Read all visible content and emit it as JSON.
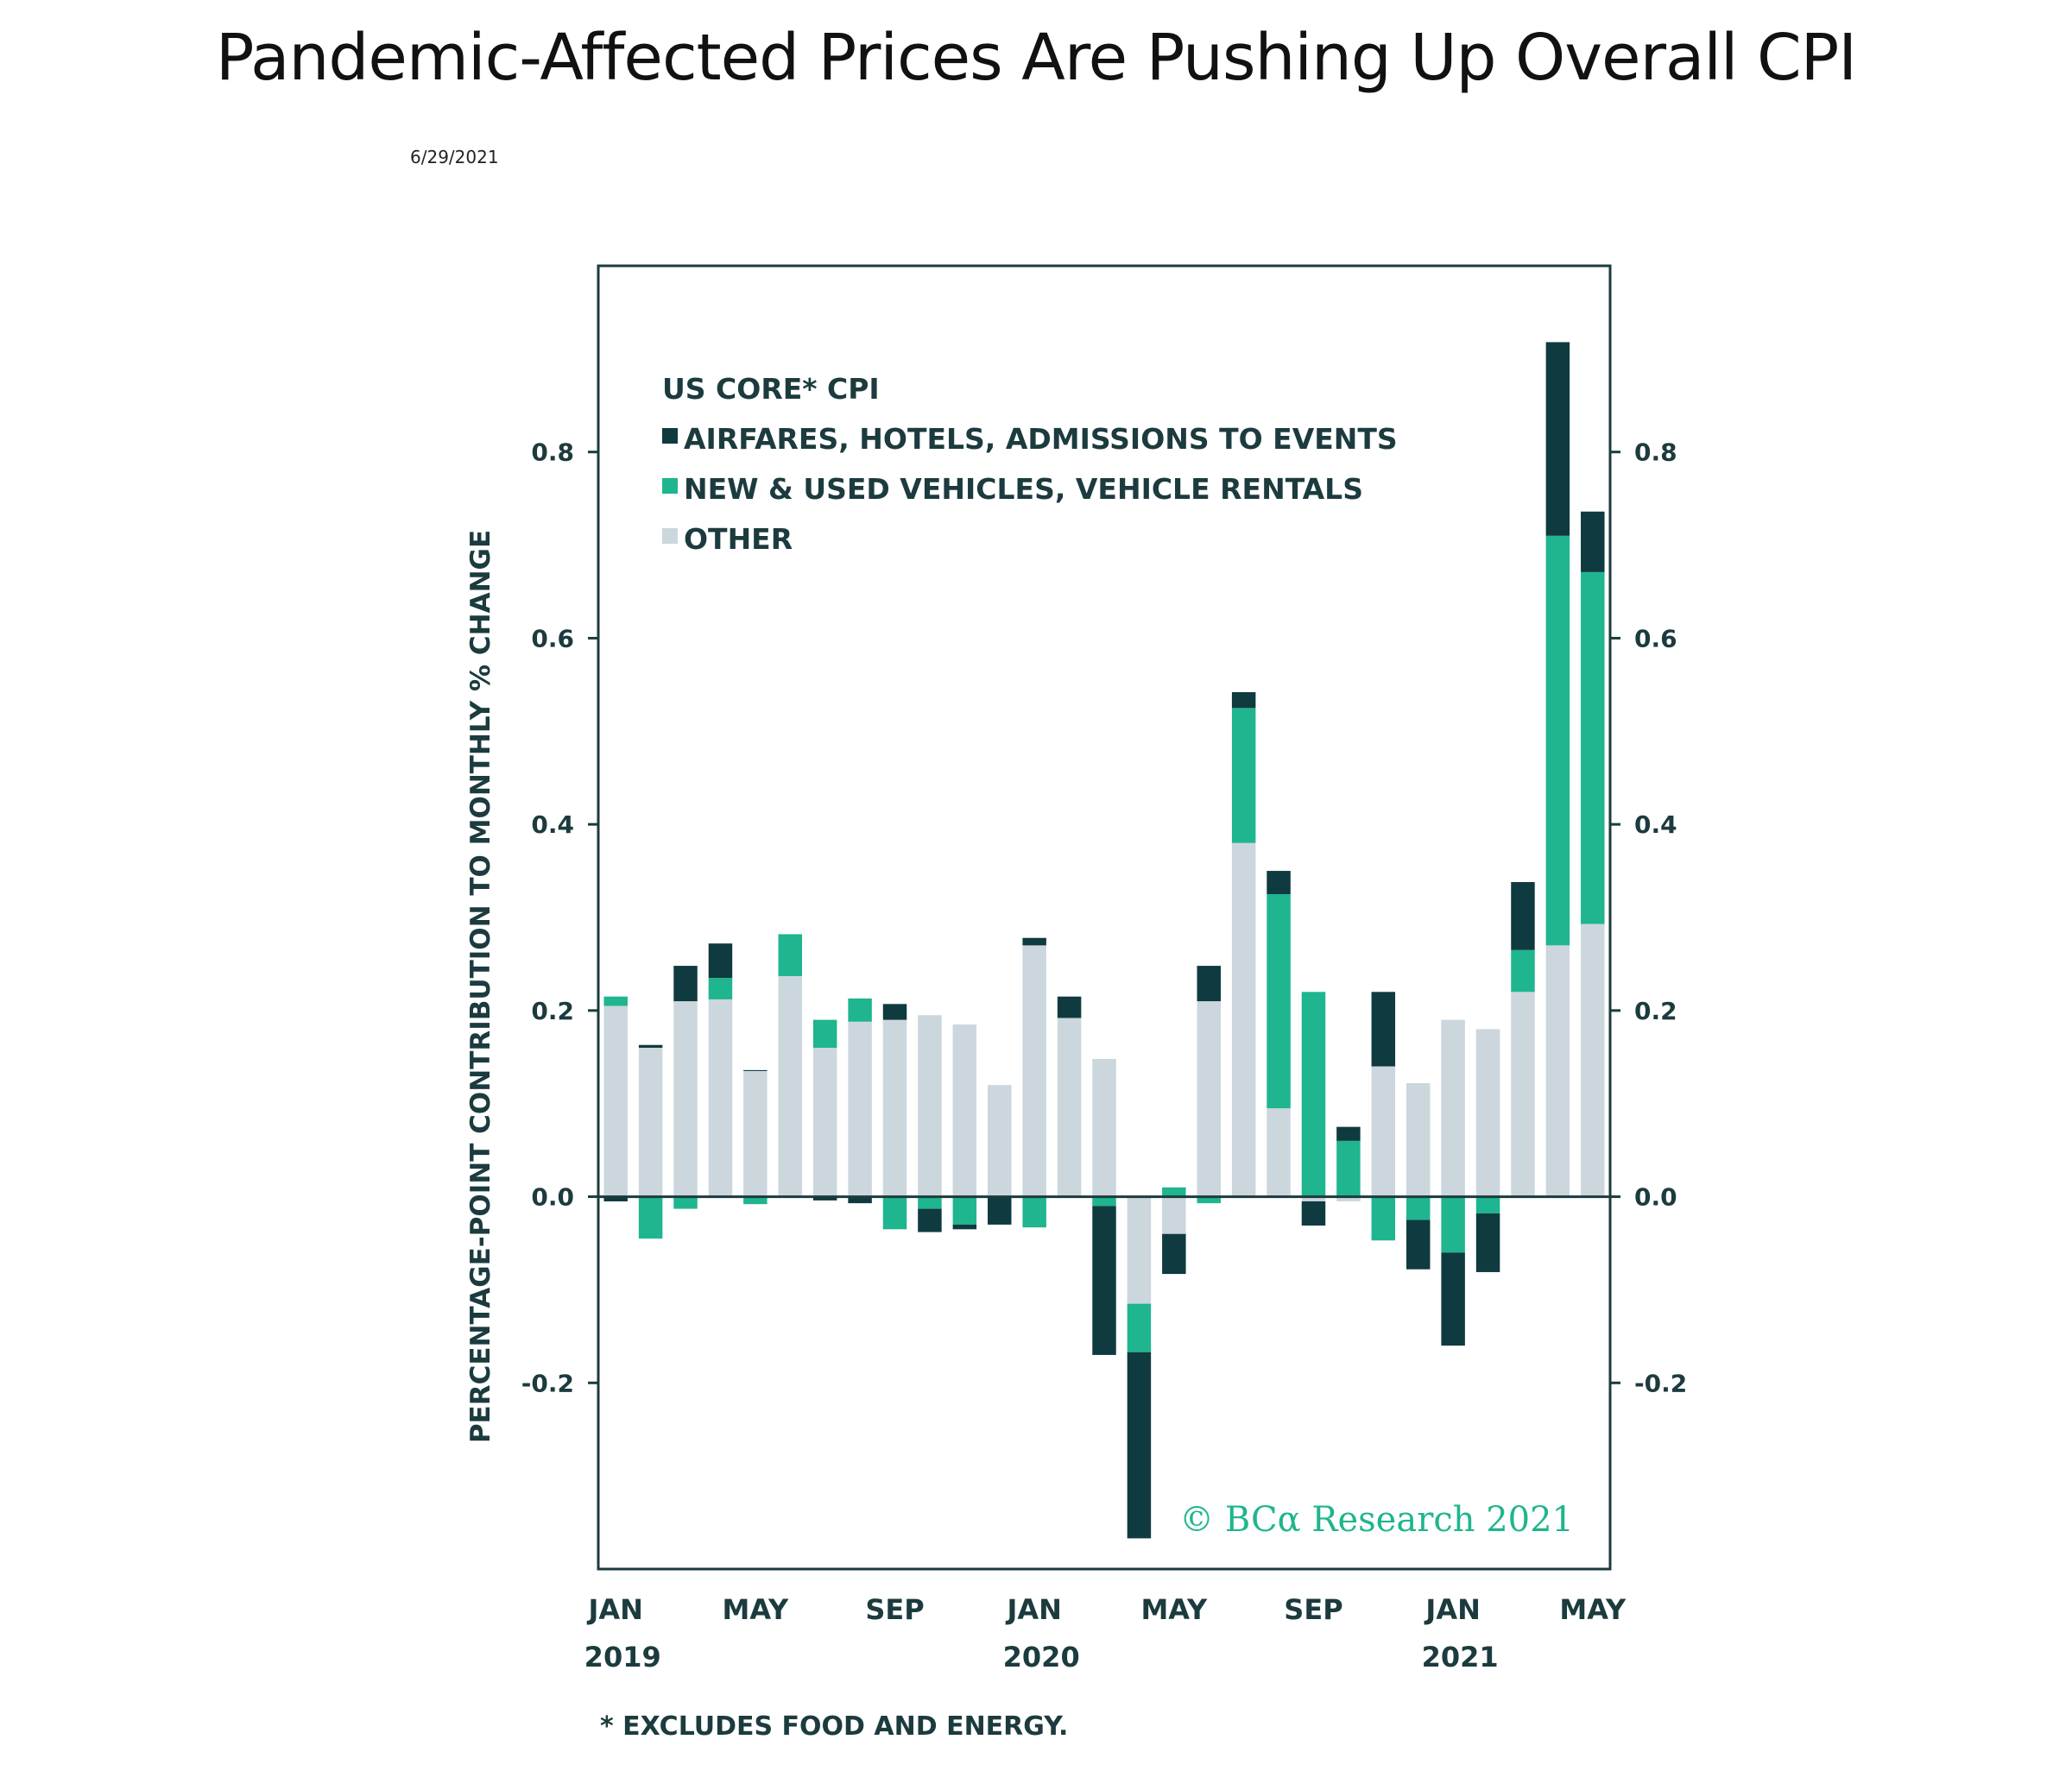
{
  "page": {
    "title": "Pandemic-Affected Prices Are Pushing Up Overall CPI",
    "date": "6/29/2021"
  },
  "colors": {
    "airfares": "#0f3a3f",
    "vehicles": "#1fb58e",
    "other": "#ccd6dd",
    "axis": "#1c3b3e"
  },
  "chart_data": {
    "type": "bar",
    "stacked": true,
    "title": "US CORE* CPI",
    "ylabel": "PERCENTAGE-POINT CONTRIBUTION TO MONTHLY % CHANGE",
    "ylim": [
      -0.4,
      1.0
    ],
    "yticks": [
      "0.8",
      "0.6",
      "0.4",
      "0.2",
      "0.0",
      "-0.2"
    ],
    "ytick_values": [
      0.8,
      0.6,
      0.4,
      0.2,
      0.0,
      -0.2
    ],
    "xtick_labels": [
      {
        "month": "JAN",
        "year": "2019",
        "index": 0
      },
      {
        "month": "MAY",
        "year": "",
        "index": 4
      },
      {
        "month": "SEP",
        "year": "",
        "index": 8
      },
      {
        "month": "JAN",
        "year": "2020",
        "index": 12
      },
      {
        "month": "MAY",
        "year": "",
        "index": 16
      },
      {
        "month": "SEP",
        "year": "",
        "index": 20
      },
      {
        "month": "JAN",
        "year": "2021",
        "index": 24
      },
      {
        "month": "MAY",
        "year": "",
        "index": 28
      }
    ],
    "categories": [
      "2019-01",
      "2019-02",
      "2019-03",
      "2019-04",
      "2019-05",
      "2019-06",
      "2019-07",
      "2019-08",
      "2019-09",
      "2019-10",
      "2019-11",
      "2019-12",
      "2020-01",
      "2020-02",
      "2020-03",
      "2020-04",
      "2020-05",
      "2020-06",
      "2020-07",
      "2020-08",
      "2020-09",
      "2020-10",
      "2020-11",
      "2020-12",
      "2021-01",
      "2021-02",
      "2021-03",
      "2021-04",
      "2021-05"
    ],
    "series": [
      {
        "name": "OTHER",
        "key": "other",
        "values": [
          0.205,
          0.16,
          0.21,
          0.212,
          0.135,
          0.237,
          0.16,
          0.188,
          0.19,
          0.195,
          0.185,
          0.12,
          0.27,
          0.192,
          0.148,
          -0.115,
          -0.04,
          0.21,
          0.38,
          0.095,
          -0.005,
          -0.005,
          0.14,
          0.122,
          0.19,
          0.18,
          0.22,
          0.27,
          0.293
        ]
      },
      {
        "name": "NEW & USED VEHICLES, VEHICLE RENTALS",
        "key": "vehicles",
        "values": [
          0.01,
          -0.045,
          -0.013,
          0.023,
          -0.008,
          0.045,
          0.03,
          0.025,
          -0.035,
          -0.013,
          -0.03,
          0.0,
          -0.033,
          0.0,
          -0.01,
          -0.052,
          0.01,
          -0.007,
          0.145,
          0.23,
          0.22,
          0.06,
          -0.047,
          -0.025,
          -0.06,
          -0.018,
          0.045,
          0.44,
          0.378
        ]
      },
      {
        "name": "AIRFARES, HOTELS, ADMISSIONS TO EVENTS",
        "key": "airfares",
        "values": [
          -0.005,
          0.003,
          0.038,
          0.037,
          0.001,
          0.0,
          -0.004,
          -0.007,
          0.017,
          -0.025,
          -0.005,
          -0.03,
          0.008,
          0.023,
          -0.16,
          -0.2,
          -0.043,
          0.038,
          0.017,
          0.025,
          -0.026,
          0.015,
          0.08,
          -0.053,
          -0.1,
          -0.063,
          0.073,
          0.208,
          0.065
        ]
      }
    ],
    "legend": {
      "title": "US CORE* CPI",
      "items": [
        {
          "label": "AIRFARES, HOTELS, ADMISSIONS TO EVENTS",
          "key": "airfares"
        },
        {
          "label": "NEW & USED VEHICLES, VEHICLE RENTALS",
          "key": "vehicles"
        },
        {
          "label": "OTHER",
          "key": "other"
        }
      ]
    },
    "footnote": "* EXCLUDES FOOD AND ENERGY.",
    "copyright": "© BCα Research 2021"
  }
}
